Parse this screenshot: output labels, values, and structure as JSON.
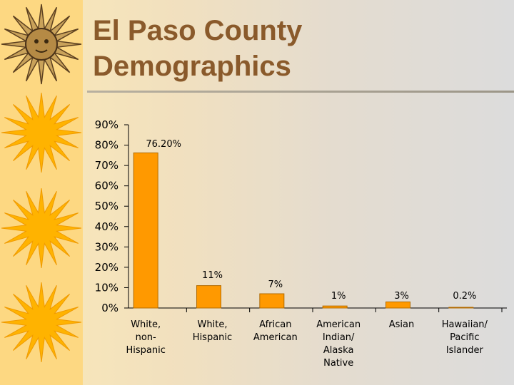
{
  "slide": {
    "title": "El Paso County\nDemographics"
  },
  "icons": {
    "decoration": "sun-icon"
  },
  "colors": {
    "bar": "#ff9900",
    "bar_stroke": "#b36b00",
    "title": "#8a5a2b",
    "sun": "#ffb300"
  },
  "chart_data": {
    "type": "bar",
    "categories": [
      [
        "White,",
        "non-",
        "Hispanic"
      ],
      [
        "White,",
        "Hispanic"
      ],
      [
        "African",
        "American"
      ],
      [
        "American",
        "Indian/",
        "Alaska",
        "Native"
      ],
      [
        "Asian"
      ],
      [
        "Hawaiian/",
        "Pacific",
        "Islander"
      ]
    ],
    "values": [
      76.2,
      11,
      7,
      1,
      3,
      0.2
    ],
    "data_labels": [
      "76.20%",
      "11%",
      "7%",
      "1%",
      "3%",
      "0.2%"
    ],
    "ylim": [
      0,
      90
    ],
    "yticks": [
      "0%",
      "10%",
      "20%",
      "30%",
      "40%",
      "50%",
      "60%",
      "70%",
      "80%",
      "90%"
    ],
    "grid": false,
    "legend": "none"
  }
}
